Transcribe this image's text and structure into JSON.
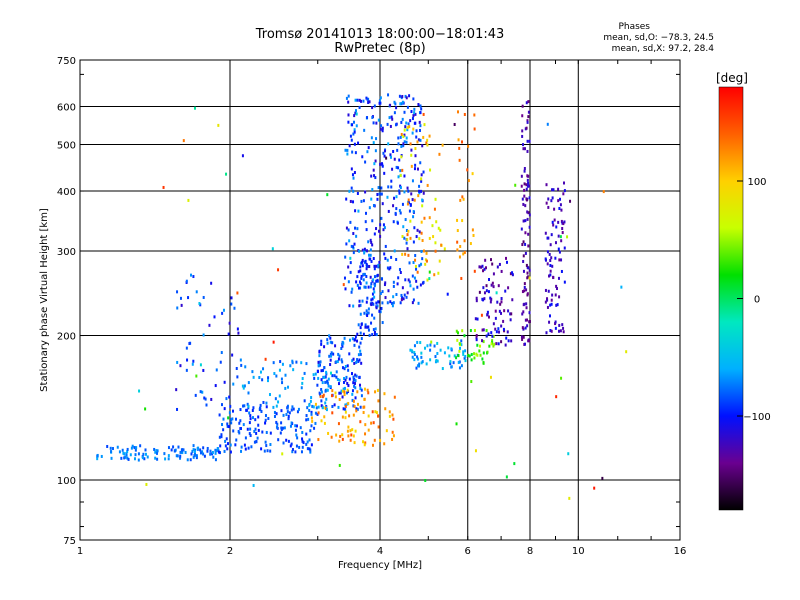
{
  "chart_data": {
    "type": "scatter",
    "title": "Tromsø 20141013 18:00:00−18:01:43",
    "subtitle": "RwPretec (8p)",
    "stats": {
      "heading": "Phases",
      "o_line": "mean, sd,O: −78.3, 24.5",
      "x_line": "mean, sd,X: 97.2, 28.4"
    },
    "xlabel": "Frequency [MHz]",
    "ylabel": "Stationary phase Virtual Height [km]",
    "x_scale": "log",
    "y_scale": "log",
    "xlim": [
      1,
      16
    ],
    "ylim": [
      75,
      750
    ],
    "xticks": [
      1,
      2,
      4,
      6,
      8,
      10,
      16
    ],
    "xtick_labels": [
      "1",
      "2",
      "4",
      "6",
      "8",
      "10",
      "16"
    ],
    "yticks": [
      75,
      100,
      200,
      300,
      400,
      500,
      600,
      750
    ],
    "ytick_labels": [
      "75",
      "100",
      "200",
      "300",
      "400",
      "500",
      "600",
      "750"
    ],
    "grid_x": [
      2,
      4,
      6,
      8,
      10
    ],
    "grid_y": [
      100,
      200,
      300,
      400,
      500,
      600
    ],
    "colorbar": {
      "label": "[deg]",
      "range": [
        -180,
        180
      ],
      "ticks": [
        100,
        0,
        -100
      ],
      "tick_labels": [
        "100",
        "0",
        "−100"
      ],
      "colors": [
        "#000000",
        "#6a0090",
        "#0010ff",
        "#00b0ff",
        "#00e8c0",
        "#00e000",
        "#c8ff00",
        "#ffd000",
        "#ff6000",
        "#ff0000"
      ]
    },
    "clusters": [
      {
        "note": "O-trace low",
        "x": [
          1.08,
          1.9
        ],
        "y": [
          110,
          118
        ],
        "phase": [
          -90,
          -60
        ],
        "n": 110
      },
      {
        "note": "O-trace rise",
        "x": [
          1.9,
          3.0
        ],
        "y": [
          114,
          145
        ],
        "phase": [
          -100,
          -70
        ],
        "n": 170
      },
      {
        "note": "O-trace body",
        "x": [
          3.0,
          3.7
        ],
        "y": [
          140,
          200
        ],
        "phase": [
          -110,
          -60
        ],
        "n": 150
      },
      {
        "note": "O-trace cusp",
        "x": [
          3.6,
          4.05
        ],
        "y": [
          200,
          290
        ],
        "phase": [
          -110,
          -70
        ],
        "n": 100
      },
      {
        "note": "upper cluster",
        "x": [
          3.4,
          4.9
        ],
        "y": [
          230,
          640
        ],
        "phase": [
          -120,
          -60
        ],
        "n": 380
      },
      {
        "note": "X-trace",
        "x": [
          2.9,
          4.3
        ],
        "y": [
          118,
          155
        ],
        "phase": [
          90,
          150
        ],
        "n": 95
      },
      {
        "note": "X-trace high",
        "x": [
          4.4,
          5.4
        ],
        "y": [
          260,
          560
        ],
        "phase": [
          60,
          140
        ],
        "n": 70
      },
      {
        "note": "F2 upper",
        "x": [
          4.6,
          6.0
        ],
        "y": [
          170,
          195
        ],
        "phase": [
          -90,
          -40
        ],
        "n": 60
      },
      {
        "note": "F2 green",
        "x": [
          5.6,
          6.8
        ],
        "y": [
          175,
          205
        ],
        "phase": [
          10,
          60
        ],
        "n": 40
      },
      {
        "note": "F2 trace",
        "x": [
          6.2,
          7.4
        ],
        "y": [
          190,
          290
        ],
        "phase": [
          -150,
          -100
        ],
        "n": 85
      },
      {
        "note": "F2 column",
        "x": [
          7.7,
          8.0
        ],
        "y": [
          190,
          620
        ],
        "phase": [
          -150,
          -110
        ],
        "n": 95
      },
      {
        "note": "F2 column right",
        "x": [
          8.6,
          9.4
        ],
        "y": [
          200,
          420
        ],
        "phase": [
          -140,
          -100
        ],
        "n": 90
      },
      {
        "note": "left scatter",
        "x": [
          1.55,
          2.1
        ],
        "y": [
          140,
          270
        ],
        "phase": [
          -120,
          -60
        ],
        "n": 55
      },
      {
        "note": "mid scatter",
        "x": [
          2.1,
          3.2
        ],
        "y": [
          140,
          180
        ],
        "phase": [
          -90,
          -50
        ],
        "n": 75
      },
      {
        "note": "orange column",
        "x": [
          5.7,
          6.2
        ],
        "y": [
          240,
          600
        ],
        "phase": [
          100,
          150
        ],
        "n": 30
      },
      {
        "note": "sparse",
        "x": [
          1.3,
          14
        ],
        "y": [
          90,
          620
        ],
        "phase": [
          -170,
          170
        ],
        "n": 60
      }
    ]
  }
}
